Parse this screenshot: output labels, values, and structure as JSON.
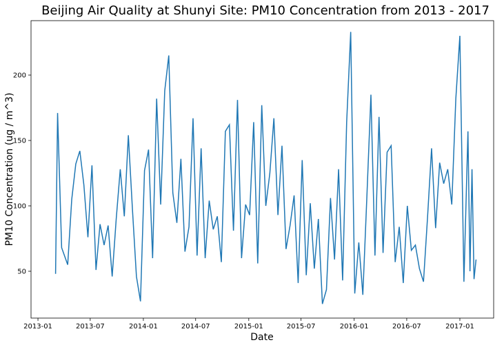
{
  "chart_data": {
    "type": "line",
    "title": "Beijing Air Quality at Shunyi Site: PM10 Concentration from 2013 - 2017",
    "x_label": "Date",
    "y_label": "PM10 Concentration (ug / m^3)",
    "color": "#1f77b4",
    "x": [
      "2013-03-03",
      "2013-03-10",
      "2013-03-24",
      "2013-04-14",
      "2013-04-28",
      "2013-05-12",
      "2013-05-26",
      "2013-06-09",
      "2013-06-23",
      "2013-07-07",
      "2013-07-21",
      "2013-08-04",
      "2013-08-18",
      "2013-09-01",
      "2013-09-15",
      "2013-09-29",
      "2013-10-13",
      "2013-10-27",
      "2013-11-10",
      "2013-11-24",
      "2013-12-08",
      "2013-12-22",
      "2014-01-05",
      "2014-01-19",
      "2014-02-02",
      "2014-02-16",
      "2014-03-02",
      "2014-03-16",
      "2014-03-30",
      "2014-04-13",
      "2014-04-27",
      "2014-05-11",
      "2014-05-25",
      "2014-06-08",
      "2014-06-22",
      "2014-07-06",
      "2014-07-20",
      "2014-08-03",
      "2014-08-17",
      "2014-08-31",
      "2014-09-14",
      "2014-09-28",
      "2014-10-12",
      "2014-10-26",
      "2014-11-09",
      "2014-11-23",
      "2014-12-07",
      "2014-12-21",
      "2015-01-04",
      "2015-01-18",
      "2015-02-01",
      "2015-02-15",
      "2015-03-01",
      "2015-03-15",
      "2015-03-29",
      "2015-04-12",
      "2015-04-26",
      "2015-05-10",
      "2015-05-24",
      "2015-06-07",
      "2015-06-21",
      "2015-07-05",
      "2015-07-19",
      "2015-08-02",
      "2015-08-16",
      "2015-08-30",
      "2015-09-13",
      "2015-09-27",
      "2015-10-11",
      "2015-10-25",
      "2015-11-08",
      "2015-11-22",
      "2015-12-06",
      "2015-12-20",
      "2016-01-03",
      "2016-01-17",
      "2016-01-31",
      "2016-02-14",
      "2016-02-28",
      "2016-03-13",
      "2016-03-27",
      "2016-04-10",
      "2016-04-24",
      "2016-05-08",
      "2016-05-22",
      "2016-06-05",
      "2016-06-19",
      "2016-07-03",
      "2016-07-17",
      "2016-07-31",
      "2016-08-14",
      "2016-08-28",
      "2016-09-11",
      "2016-09-25",
      "2016-10-09",
      "2016-10-23",
      "2016-11-06",
      "2016-11-20",
      "2016-12-04",
      "2016-12-18",
      "2017-01-01",
      "2017-01-15",
      "2017-01-29",
      "2017-02-05",
      "2017-02-12",
      "2017-02-19",
      "2017-02-26"
    ],
    "values": [
      48,
      171,
      68,
      55,
      105,
      132,
      142,
      116,
      76,
      131,
      51,
      86,
      70,
      85,
      46,
      90,
      128,
      92,
      154,
      98,
      46,
      27,
      127,
      143,
      60,
      182,
      101,
      188,
      215,
      110,
      87,
      136,
      65,
      84,
      167,
      62,
      144,
      60,
      104,
      82,
      92,
      57,
      157,
      162,
      81,
      181,
      60,
      101,
      93,
      164,
      56,
      177,
      100,
      125,
      167,
      93,
      146,
      67,
      85,
      108,
      41,
      135,
      47,
      102,
      52,
      90,
      25,
      36,
      106,
      59,
      128,
      43,
      164,
      233,
      33,
      72,
      32,
      107,
      185,
      62,
      168,
      64,
      141,
      146,
      57,
      84,
      41,
      100,
      66,
      70,
      52,
      42,
      91,
      144,
      83,
      133,
      117,
      128,
      101,
      182,
      230,
      42,
      157,
      50,
      128,
      44,
      59
    ],
    "xlim": [
      "2012-12-08",
      "2017-04-28"
    ],
    "xticks": [
      {
        "value": "2013-01-01",
        "label": "2013-01"
      },
      {
        "value": "2013-07-01",
        "label": "2013-07"
      },
      {
        "value": "2014-01-01",
        "label": "2014-01"
      },
      {
        "value": "2014-07-01",
        "label": "2014-07"
      },
      {
        "value": "2015-01-01",
        "label": "2015-01"
      },
      {
        "value": "2015-07-01",
        "label": "2015-07"
      },
      {
        "value": "2016-01-01",
        "label": "2016-01"
      },
      {
        "value": "2016-07-01",
        "label": "2016-07"
      },
      {
        "value": "2017-01-01",
        "label": "2017-01"
      }
    ],
    "ylim": [
      14.2,
      241.6
    ],
    "yticks": [
      50,
      100,
      150,
      200
    ]
  }
}
